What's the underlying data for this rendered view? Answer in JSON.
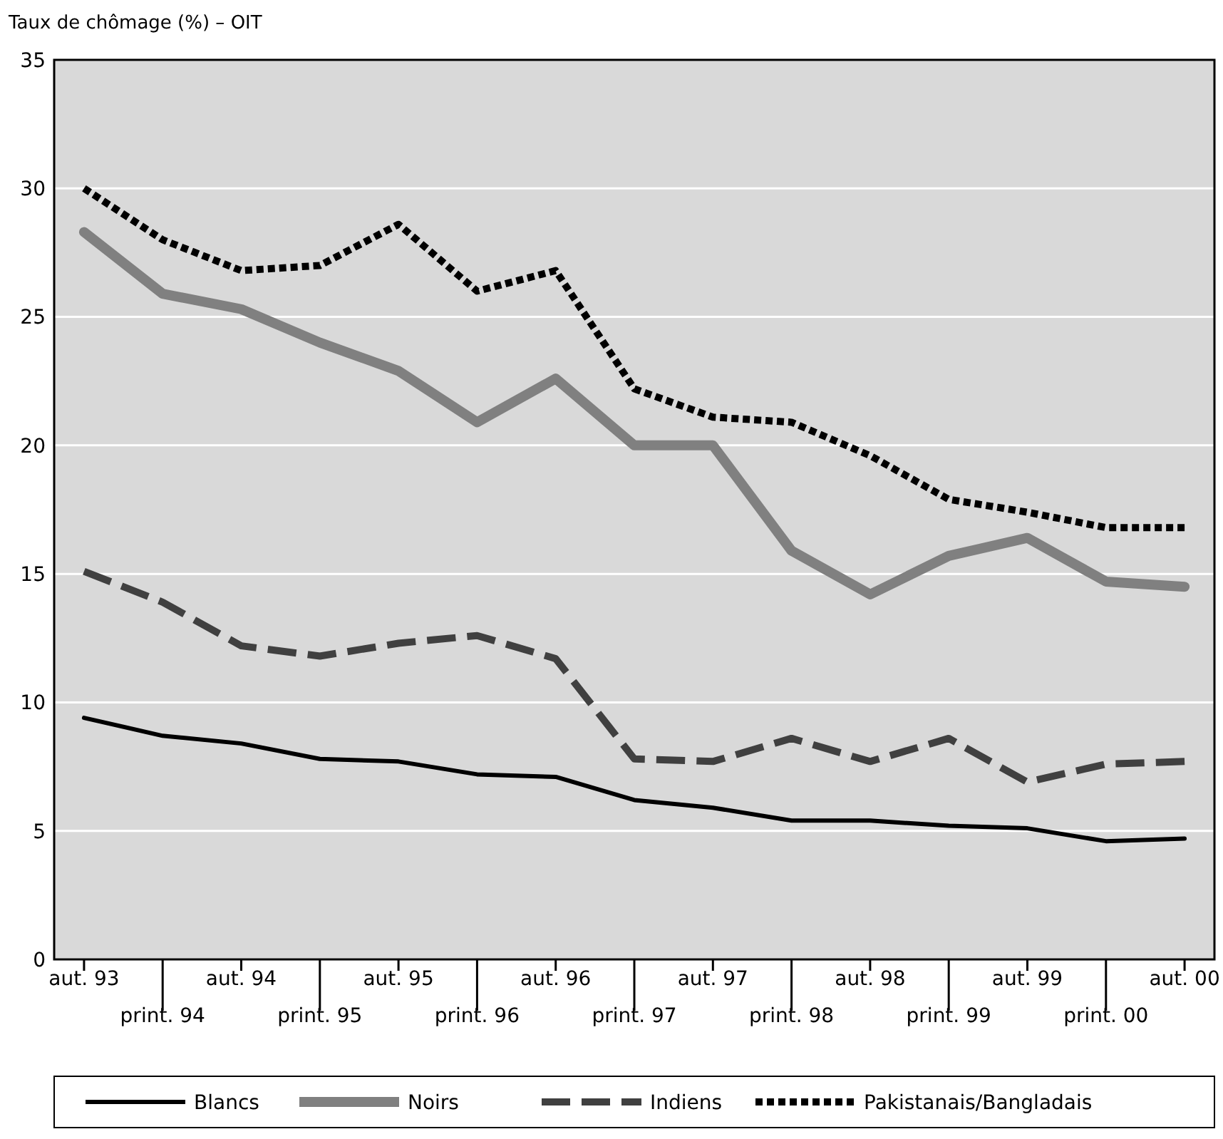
{
  "chart_data": {
    "type": "line",
    "ylabel": "Taux de chômage (%) – OIT",
    "categories": [
      "aut. 93",
      "print. 94",
      "aut. 94",
      "print. 95",
      "aut. 95",
      "print. 96",
      "aut. 96",
      "print. 97",
      "aut. 97",
      "print. 98",
      "aut. 98",
      "print. 99",
      "aut. 99",
      "print. 00",
      "aut. 00"
    ],
    "series": [
      {
        "name": "Blancs",
        "color": "#000000",
        "line_style": "solid",
        "values": [
          9.4,
          8.7,
          8.4,
          7.8,
          7.7,
          7.2,
          7.1,
          6.2,
          5.9,
          5.4,
          5.4,
          5.2,
          5.1,
          4.6,
          4.7
        ]
      },
      {
        "name": "Noirs",
        "color": "#808080",
        "line_style": "solid",
        "values": [
          28.3,
          25.9,
          25.3,
          24.0,
          22.9,
          20.9,
          22.6,
          20.0,
          20.0,
          15.9,
          14.2,
          15.7,
          16.4,
          14.7,
          14.5
        ]
      },
      {
        "name": "Indiens",
        "color": "#404040",
        "line_style": "dashed",
        "values": [
          15.1,
          13.9,
          12.2,
          11.8,
          12.3,
          12.6,
          11.7,
          7.8,
          7.7,
          8.6,
          7.7,
          8.6,
          6.9,
          7.6,
          7.7
        ]
      },
      {
        "name": "Pakistanais/Bangladais",
        "color": "#000000",
        "line_style": "dotted",
        "values": [
          30.0,
          28.0,
          26.8,
          27.0,
          28.6,
          26.0,
          26.8,
          22.2,
          21.1,
          20.9,
          19.6,
          17.9,
          17.4,
          16.8,
          16.8
        ]
      }
    ],
    "ylim": [
      0,
      35
    ],
    "yticks": [
      0,
      5,
      10,
      15,
      20,
      25,
      30,
      35
    ],
    "grid": "y",
    "legend": "bottom"
  }
}
